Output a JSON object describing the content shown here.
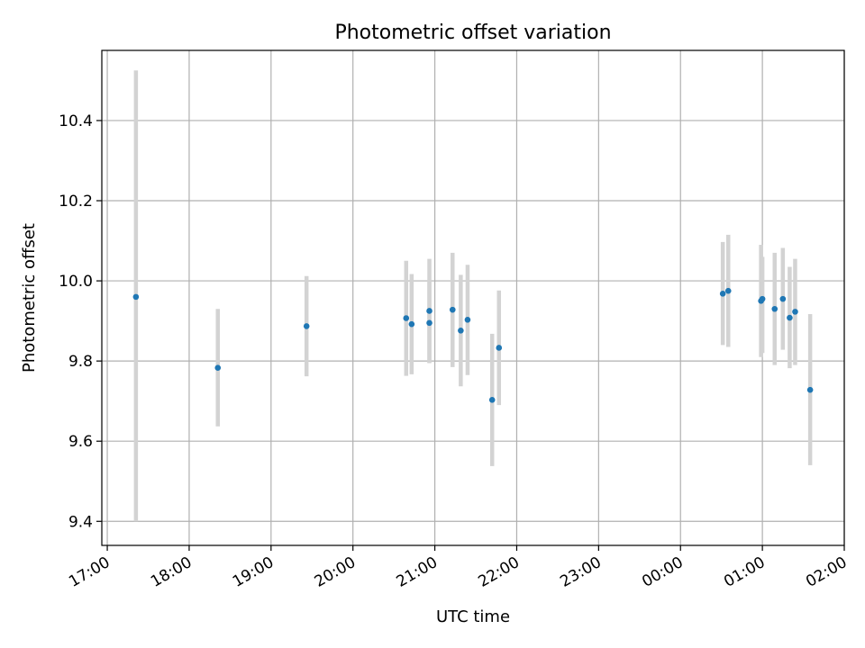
{
  "chart_data": {
    "type": "scatter",
    "title": "Photometric offset variation",
    "xlabel": "UTC time",
    "ylabel": "Photometric offset",
    "x_axis_kind": "time",
    "xlim": [
      "16:56",
      "02:00"
    ],
    "ylim": [
      9.34,
      10.575
    ],
    "x_ticks": [
      "17:00",
      "18:00",
      "19:00",
      "20:00",
      "21:00",
      "22:00",
      "23:00",
      "00:00",
      "01:00",
      "02:00"
    ],
    "y_ticks": [
      9.4,
      9.6,
      9.8,
      10.0,
      10.2,
      10.4
    ],
    "y_tick_labels": [
      "9.4",
      "9.6",
      "9.8",
      "10.0",
      "10.2",
      "10.4"
    ],
    "grid": true,
    "marker_color": "#1f77b4",
    "errorbar_color": "#d3d3d3",
    "points": [
      {
        "x": "17:21",
        "y": 9.96,
        "y_low": 9.4,
        "y_high": 10.525
      },
      {
        "x": "18:21",
        "y": 9.783,
        "y_low": 9.637,
        "y_high": 9.93
      },
      {
        "x": "19:26",
        "y": 9.887,
        "y_low": 9.762,
        "y_high": 10.012
      },
      {
        "x": "20:39",
        "y": 9.907,
        "y_low": 9.763,
        "y_high": 10.05
      },
      {
        "x": "20:43",
        "y": 9.892,
        "y_low": 9.767,
        "y_high": 10.017
      },
      {
        "x": "20:56",
        "y": 9.925,
        "y_low": 9.795,
        "y_high": 10.055
      },
      {
        "x": "20:56",
        "y": 9.895,
        "y_low": 9.795,
        "y_high": 10.0
      },
      {
        "x": "21:13",
        "y": 9.928,
        "y_low": 9.785,
        "y_high": 10.07
      },
      {
        "x": "21:19",
        "y": 9.876,
        "y_low": 9.737,
        "y_high": 10.015
      },
      {
        "x": "21:24",
        "y": 9.903,
        "y_low": 9.765,
        "y_high": 10.04
      },
      {
        "x": "21:42",
        "y": 9.703,
        "y_low": 9.538,
        "y_high": 9.868
      },
      {
        "x": "21:47",
        "y": 9.833,
        "y_low": 9.69,
        "y_high": 9.976
      },
      {
        "x": "00:31",
        "y": 9.968,
        "y_low": 9.84,
        "y_high": 10.097
      },
      {
        "x": "00:35",
        "y": 9.975,
        "y_low": 9.835,
        "y_high": 10.115
      },
      {
        "x": "00:59",
        "y": 9.95,
        "y_low": 9.81,
        "y_high": 10.09
      },
      {
        "x": "01:00",
        "y": 9.955,
        "y_low": 9.82,
        "y_high": 10.06
      },
      {
        "x": "01:09",
        "y": 9.93,
        "y_low": 9.79,
        "y_high": 10.07
      },
      {
        "x": "01:15",
        "y": 9.955,
        "y_low": 9.828,
        "y_high": 10.082
      },
      {
        "x": "01:20",
        "y": 9.908,
        "y_low": 9.782,
        "y_high": 10.035
      },
      {
        "x": "01:24",
        "y": 9.923,
        "y_low": 9.79,
        "y_high": 10.055
      },
      {
        "x": "01:35",
        "y": 9.728,
        "y_low": 9.54,
        "y_high": 9.917
      }
    ]
  }
}
